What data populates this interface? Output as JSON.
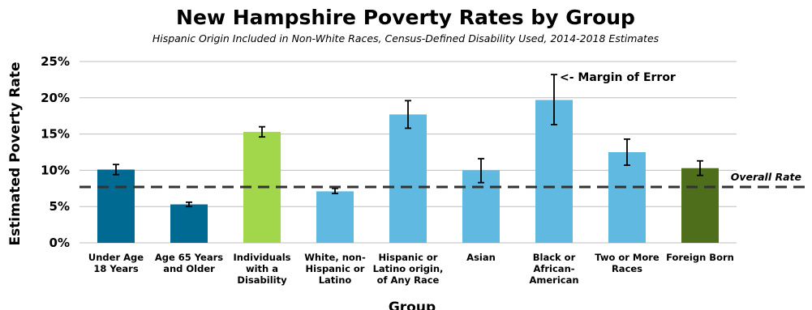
{
  "chart_data": {
    "type": "bar",
    "title": "New Hampshire Poverty Rates by Group",
    "subtitle": "Hispanic Origin Included in Non-White Races, Census-Defined Disability Used, 2014-2018 Estimates",
    "xlabel": "Group",
    "ylabel": "Estimated Poverty Rate",
    "ylim": [
      0,
      25
    ],
    "yticks": [
      "0%",
      "5%",
      "10%",
      "15%",
      "20%",
      "25%"
    ],
    "grid": true,
    "categories": [
      [
        "Under Age",
        "18 Years"
      ],
      [
        "Age 65 Years",
        "and Older"
      ],
      [
        "Individuals",
        "with a",
        "Disability"
      ],
      [
        "White, non-",
        "Hispanic or",
        "Latino"
      ],
      [
        "Hispanic or",
        "Latino origin,",
        "of Any Race"
      ],
      [
        "Asian"
      ],
      [
        "Black or",
        "African-",
        "American"
      ],
      [
        "Two or More",
        "Races"
      ],
      [
        "Foreign Born"
      ]
    ],
    "values": [
      10.1,
      5.3,
      15.3,
      7.1,
      17.7,
      10.0,
      19.7,
      12.5,
      10.3
    ],
    "error_low": [
      9.4,
      5.0,
      14.6,
      6.8,
      15.8,
      8.3,
      16.3,
      10.7,
      9.3
    ],
    "error_high": [
      10.8,
      5.6,
      16.0,
      7.5,
      19.6,
      11.6,
      23.2,
      14.3,
      11.3
    ],
    "colors": [
      "#006a92",
      "#006a92",
      "#a2d64b",
      "#5fb9e1",
      "#5fb9e1",
      "#5fb9e1",
      "#5fb9e1",
      "#5fb9e1",
      "#4e6e1b"
    ],
    "reference_line": {
      "value": 7.7,
      "label": "Overall Rate"
    },
    "annotation": {
      "text": "<- Margin of Error"
    }
  }
}
